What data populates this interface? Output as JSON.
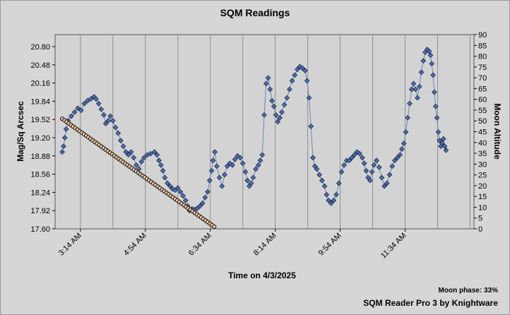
{
  "chart_data": {
    "type": "line",
    "title": "SQM Readings",
    "xlabel": "Time on 4/3/2025",
    "ylabel": "Mag/Sq Arcsec",
    "y2label": "Moon Altitude",
    "x_ticks": [
      "3:14 AM",
      "4:54 AM",
      "6:34 AM",
      "8:14 AM",
      "9:54 AM",
      "11:34 AM"
    ],
    "x_tick_minutes": [
      194,
      294,
      394,
      494,
      594,
      694
    ],
    "xlim_minutes": [
      155,
      800
    ],
    "ylim": [
      17.6,
      21.04
    ],
    "y_ticks": [
      17.6,
      17.92,
      18.24,
      18.56,
      18.88,
      19.2,
      19.52,
      19.84,
      20.16,
      20.48,
      20.8
    ],
    "y2lim": [
      0,
      90
    ],
    "y2_ticks": [
      0,
      5,
      10,
      15,
      20,
      25,
      30,
      35,
      40,
      45,
      50,
      55,
      60,
      65,
      70,
      75,
      80,
      85,
      90
    ],
    "grid": true,
    "series": [
      {
        "axis": "left",
        "color": "#6e86b4",
        "marker_color": "#4f6fae",
        "points": [
          [
            166,
            18.95
          ],
          [
            168,
            19.05
          ],
          [
            170,
            19.2
          ],
          [
            172,
            19.35
          ],
          [
            175,
            19.5
          ],
          [
            180,
            19.58
          ],
          [
            185,
            19.65
          ],
          [
            190,
            19.72
          ],
          [
            195,
            19.68
          ],
          [
            200,
            19.8
          ],
          [
            205,
            19.85
          ],
          [
            210,
            19.88
          ],
          [
            215,
            19.92
          ],
          [
            218,
            19.88
          ],
          [
            222,
            19.8
          ],
          [
            226,
            19.7
          ],
          [
            230,
            19.6
          ],
          [
            233,
            19.45
          ],
          [
            237,
            19.5
          ],
          [
            240,
            19.58
          ],
          [
            244,
            19.5
          ],
          [
            248,
            19.38
          ],
          [
            252,
            19.28
          ],
          [
            256,
            19.15
          ],
          [
            260,
            19.05
          ],
          [
            264,
            18.95
          ],
          [
            268,
            18.9
          ],
          [
            272,
            18.95
          ],
          [
            276,
            18.85
          ],
          [
            280,
            18.72
          ],
          [
            284,
            18.65
          ],
          [
            288,
            18.78
          ],
          [
            292,
            18.85
          ],
          [
            297,
            18.9
          ],
          [
            302,
            18.92
          ],
          [
            308,
            18.95
          ],
          [
            312,
            18.9
          ],
          [
            315,
            18.8
          ],
          [
            318,
            18.72
          ],
          [
            321,
            18.62
          ],
          [
            324,
            18.5
          ],
          [
            328,
            18.4
          ],
          [
            332,
            18.35
          ],
          [
            336,
            18.3
          ],
          [
            340,
            18.28
          ],
          [
            344,
            18.32
          ],
          [
            348,
            18.25
          ],
          [
            352,
            18.18
          ],
          [
            356,
            18.1
          ],
          [
            359,
            18.0
          ],
          [
            362,
            17.92
          ],
          [
            366,
            17.95
          ],
          [
            370,
            17.94
          ],
          [
            374,
            17.96
          ],
          [
            378,
            18.0
          ],
          [
            382,
            18.05
          ],
          [
            386,
            18.15
          ],
          [
            390,
            18.25
          ],
          [
            393,
            18.45
          ],
          [
            396,
            18.62
          ],
          [
            398,
            18.8
          ],
          [
            401,
            18.95
          ],
          [
            404,
            18.7
          ],
          [
            408,
            18.5
          ],
          [
            412,
            18.35
          ],
          [
            416,
            18.55
          ],
          [
            420,
            18.7
          ],
          [
            424,
            18.75
          ],
          [
            428,
            18.72
          ],
          [
            432,
            18.82
          ],
          [
            436,
            18.88
          ],
          [
            440,
            18.85
          ],
          [
            444,
            18.75
          ],
          [
            448,
            18.6
          ],
          [
            451,
            18.45
          ],
          [
            454,
            18.35
          ],
          [
            457,
            18.4
          ],
          [
            460,
            18.5
          ],
          [
            464,
            18.65
          ],
          [
            468,
            18.72
          ],
          [
            471,
            18.8
          ],
          [
            474,
            18.9
          ],
          [
            477,
            19.6
          ],
          [
            480,
            20.15
          ],
          [
            483,
            20.25
          ],
          [
            486,
            20.05
          ],
          [
            489,
            19.85
          ],
          [
            492,
            19.75
          ],
          [
            495,
            19.6
          ],
          [
            498,
            19.48
          ],
          [
            501,
            19.55
          ],
          [
            504,
            19.65
          ],
          [
            508,
            19.78
          ],
          [
            512,
            19.9
          ],
          [
            516,
            20.05
          ],
          [
            520,
            20.2
          ],
          [
            524,
            20.3
          ],
          [
            528,
            20.4
          ],
          [
            532,
            20.45
          ],
          [
            536,
            20.42
          ],
          [
            540,
            20.38
          ],
          [
            543,
            20.2
          ],
          [
            546,
            19.9
          ],
          [
            549,
            19.4
          ],
          [
            552,
            18.85
          ],
          [
            555,
            18.7
          ],
          [
            558,
            18.65
          ],
          [
            562,
            18.55
          ],
          [
            566,
            18.45
          ],
          [
            570,
            18.35
          ],
          [
            573,
            18.2
          ],
          [
            576,
            18.1
          ],
          [
            580,
            18.05
          ],
          [
            584,
            18.1
          ],
          [
            588,
            18.2
          ],
          [
            592,
            18.4
          ],
          [
            596,
            18.6
          ],
          [
            600,
            18.72
          ],
          [
            604,
            18.8
          ],
          [
            608,
            18.8
          ],
          [
            612,
            18.85
          ],
          [
            616,
            18.9
          ],
          [
            620,
            18.95
          ],
          [
            624,
            18.92
          ],
          [
            628,
            18.85
          ],
          [
            631,
            18.75
          ],
          [
            634,
            18.62
          ],
          [
            637,
            18.5
          ],
          [
            640,
            18.45
          ],
          [
            643,
            18.6
          ],
          [
            646,
            18.72
          ],
          [
            650,
            18.8
          ],
          [
            654,
            18.68
          ],
          [
            658,
            18.5
          ],
          [
            662,
            18.35
          ],
          [
            666,
            18.4
          ],
          [
            670,
            18.55
          ],
          [
            674,
            18.7
          ],
          [
            678,
            18.8
          ],
          [
            682,
            18.85
          ],
          [
            686,
            18.9
          ],
          [
            689,
            19.0
          ],
          [
            692,
            19.1
          ],
          [
            695,
            19.3
          ],
          [
            698,
            19.55
          ],
          [
            701,
            19.8
          ],
          [
            704,
            20.05
          ],
          [
            707,
            20.15
          ],
          [
            710,
            20.05
          ],
          [
            713,
            19.9
          ],
          [
            716,
            20.1
          ],
          [
            719,
            20.35
          ],
          [
            722,
            20.55
          ],
          [
            725,
            20.7
          ],
          [
            728,
            20.75
          ],
          [
            731,
            20.72
          ],
          [
            733,
            20.65
          ],
          [
            735,
            20.5
          ],
          [
            737,
            20.3
          ],
          [
            739,
            20.0
          ],
          [
            741,
            19.75
          ],
          [
            743,
            19.55
          ],
          [
            745,
            19.3
          ],
          [
            747,
            19.15
          ],
          [
            749,
            19.05
          ],
          [
            751,
            19.1
          ],
          [
            753,
            19.18
          ],
          [
            755,
            19.05
          ],
          [
            757,
            18.98
          ]
        ]
      },
      {
        "axis": "right",
        "color": "#222222",
        "marker_color": "#f4c9a0",
        "points": [
          [
            166,
            51
          ],
          [
            400,
            1
          ]
        ]
      }
    ]
  },
  "footer": {
    "moon_phase": "Moon phase: 33%",
    "credit": "SQM Reader Pro 3 by Knightware"
  }
}
